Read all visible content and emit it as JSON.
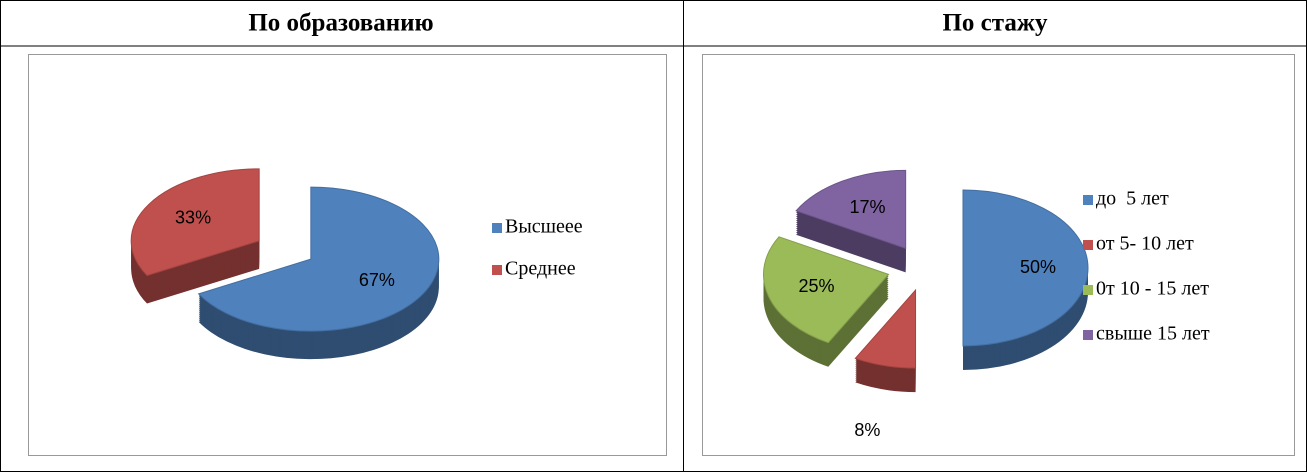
{
  "chart_data": [
    {
      "type": "pie",
      "title": "По образованию",
      "categories": [
        "Высшеее",
        "Среднее"
      ],
      "values": [
        67,
        33
      ],
      "value_labels": [
        "67%",
        "33%"
      ],
      "colors": [
        "#4f81bd",
        "#c0504d"
      ]
    },
    {
      "type": "pie",
      "title": "По стажу",
      "categories": [
        "до  5 лет",
        "от 5- 10 лет",
        "0т 10 - 15 лет",
        "свыше 15 лет"
      ],
      "values": [
        50,
        8,
        25,
        17
      ],
      "value_labels": [
        "50%",
        "8%",
        "25%",
        "17%"
      ],
      "colors": [
        "#4f81bd",
        "#c0504d",
        "#9bbb59",
        "#8064a2"
      ]
    }
  ]
}
